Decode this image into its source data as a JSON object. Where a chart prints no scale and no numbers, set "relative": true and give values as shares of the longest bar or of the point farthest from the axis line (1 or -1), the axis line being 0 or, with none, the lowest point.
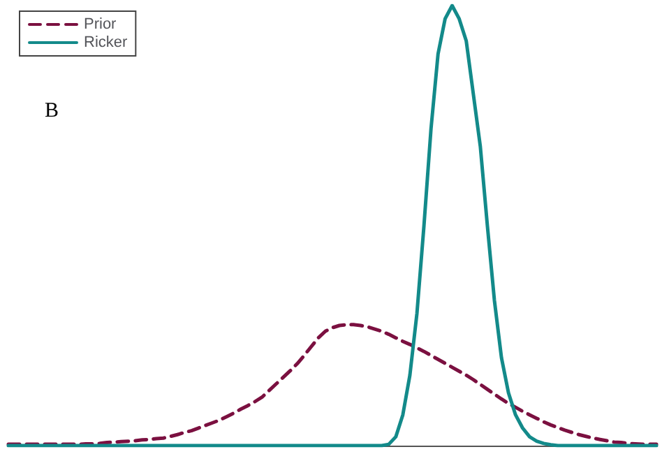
{
  "chart_data": {
    "type": "line",
    "relative": true,
    "tick_labels": false,
    "grid": false,
    "legend": "top left",
    "annotations": [
      "B"
    ],
    "categories": [
      null,
      null,
      null,
      null,
      null,
      null,
      null,
      null,
      null,
      null,
      null,
      null,
      null,
      null,
      null,
      null,
      null,
      null,
      null,
      null,
      null,
      null,
      null,
      null,
      null,
      null,
      null,
      null,
      null,
      null,
      null,
      null,
      null,
      null,
      null,
      null,
      null,
      null,
      null,
      null,
      null,
      null,
      null,
      null,
      null,
      null,
      null,
      null,
      null,
      null,
      null,
      null,
      null,
      null,
      null,
      null,
      null,
      null,
      null,
      null,
      null,
      null,
      null,
      null,
      null,
      null,
      null,
      null,
      null,
      null,
      null,
      null,
      null,
      null,
      null,
      null,
      null,
      null,
      null,
      null,
      null,
      null,
      null,
      null,
      null,
      null,
      null,
      null,
      null,
      null,
      null,
      null,
      null
    ],
    "series": [
      {
        "name": "Prior",
        "color": "#7b1040",
        "line_style": "dashed",
        "values": [
          0.003,
          0.003,
          0.003,
          0.003,
          0.003,
          0.003,
          0.003,
          0.003,
          0.003,
          0.003,
          0.003,
          0.004,
          0.004,
          0.005,
          0.007,
          0.008,
          0.009,
          0.01,
          0.011,
          0.013,
          0.014,
          0.016,
          0.017,
          0.021,
          0.025,
          0.03,
          0.034,
          0.04,
          0.046,
          0.052,
          0.058,
          0.066,
          0.074,
          0.083,
          0.091,
          0.1,
          0.11,
          0.125,
          0.14,
          0.155,
          0.17,
          0.186,
          0.205,
          0.225,
          0.245,
          0.26,
          0.268,
          0.273,
          0.275,
          0.275,
          0.273,
          0.27,
          0.265,
          0.26,
          0.253,
          0.245,
          0.237,
          0.23,
          0.222,
          0.214,
          0.205,
          0.196,
          0.187,
          0.178,
          0.169,
          0.16,
          0.15,
          0.139,
          0.128,
          0.117,
          0.106,
          0.096,
          0.087,
          0.078,
          0.07,
          0.062,
          0.054,
          0.047,
          0.041,
          0.035,
          0.03,
          0.025,
          0.021,
          0.017,
          0.014,
          0.011,
          0.008,
          0.007,
          0.005,
          0.004,
          0.003,
          0.003,
          0.003
        ]
      },
      {
        "name": "Ricker",
        "color": "#138a8a",
        "line_style": "solid",
        "values": [
          0,
          0,
          0,
          0,
          0,
          0,
          0,
          0,
          0,
          0,
          0,
          0,
          0,
          0,
          0,
          0,
          0,
          0,
          0,
          0,
          0,
          0,
          0,
          0,
          0,
          0,
          0,
          0,
          0,
          0,
          0,
          0,
          0,
          0,
          0,
          0,
          0,
          0,
          0,
          0,
          0,
          0,
          0,
          0,
          0,
          0,
          0,
          0,
          0,
          0,
          0,
          0,
          0,
          0,
          0.003,
          0.02,
          0.07,
          0.16,
          0.3,
          0.5,
          0.72,
          0.89,
          0.97,
          1,
          0.97,
          0.92,
          0.8,
          0.68,
          0.5,
          0.33,
          0.2,
          0.12,
          0.07,
          0.04,
          0.02,
          0.01,
          0.005,
          0.002,
          0,
          0,
          0,
          0,
          0,
          0,
          0,
          0,
          0,
          0,
          0,
          0,
          0,
          0,
          0
        ]
      }
    ]
  }
}
